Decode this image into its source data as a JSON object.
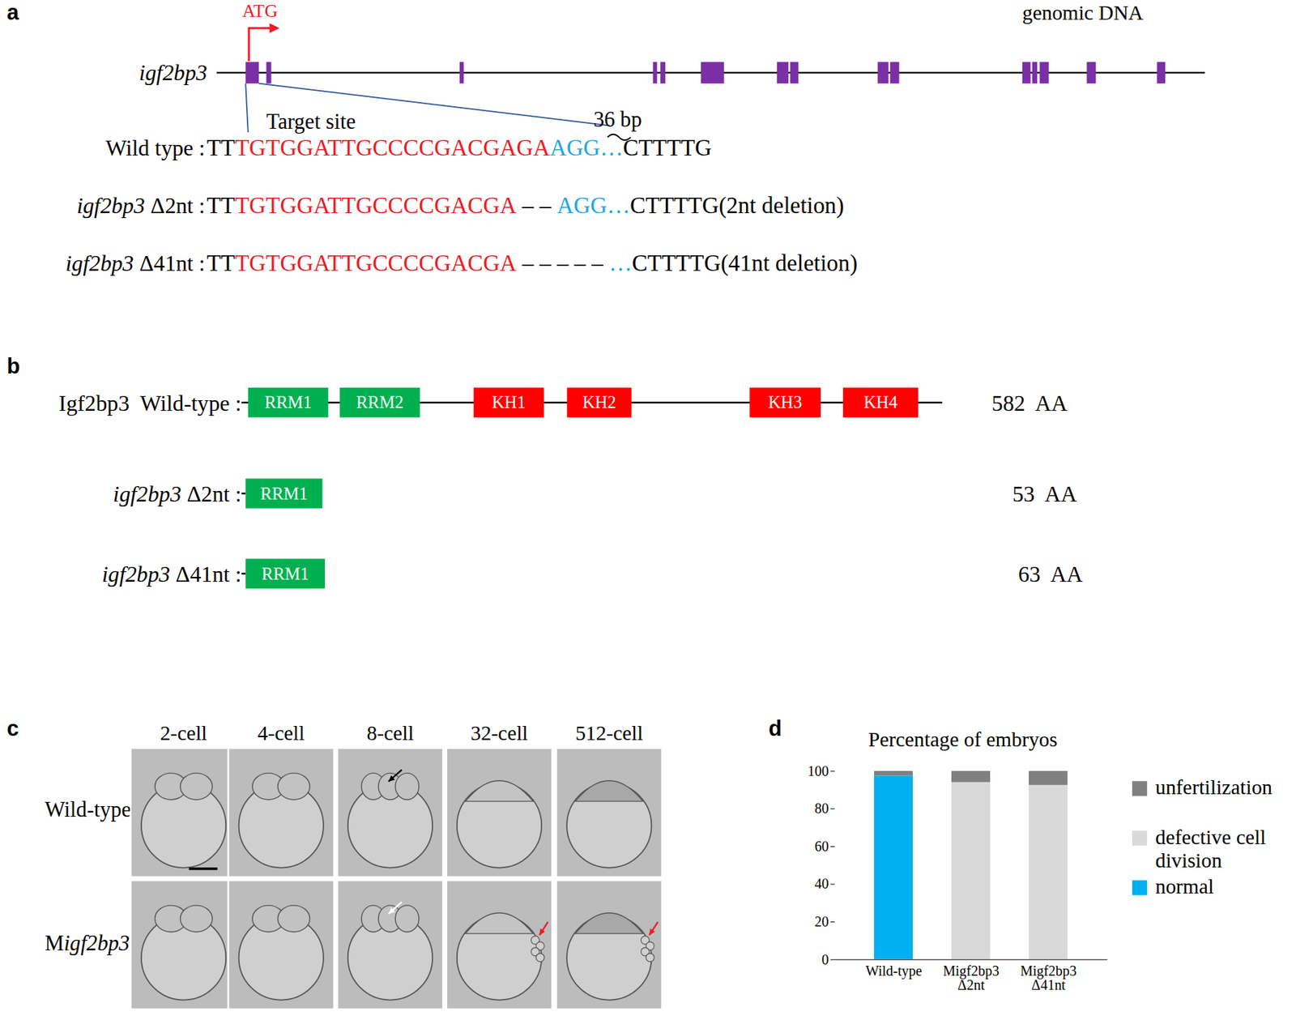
{
  "chart_data": {
    "type": "bar",
    "stacked": true,
    "title": "Percentage of embryos",
    "categories": [
      "Wild-type",
      "Migf2bp3 Δ2nt",
      "Migf2bp3 Δ41nt"
    ],
    "series": [
      {
        "name": "normal",
        "color": "#00b0f0",
        "values": [
          97.5,
          0,
          0
        ]
      },
      {
        "name": "defective cell division",
        "color": "#d9d9d9",
        "values": [
          0,
          94,
          92.5
        ]
      },
      {
        "name": "unfertilization",
        "color": "#808080",
        "values": [
          2.5,
          6,
          7.5
        ]
      }
    ],
    "ylim": [
      0,
      100
    ],
    "yticks": [
      0,
      20,
      40,
      60,
      80,
      100
    ],
    "grid": false,
    "legend": "right"
  },
  "figure": {
    "a": {
      "label": "a",
      "gene": [
        {
          "text": "igf2bp3",
          "italic": true
        }
      ],
      "track_label": "genomic DNA",
      "start_codon": "ATG",
      "target_label": "Target site",
      "gap_label": "36 bp",
      "sequences": [
        {
          "name": [
            "Wild type :"
          ],
          "segments": [
            "TT",
            {
              "text": "TGTGGATTGCCCCGACGAGA",
              "color": "#ee1c25"
            },
            {
              "text": "AGG…",
              "color": "#22a7e0"
            },
            "CTTTTG"
          ]
        },
        {
          "name": [
            {
              "text": "igf2bp3",
              "italic": true
            },
            " Δ2nt :"
          ],
          "segments": [
            "TT",
            {
              "text": "TGTGGATTGCCCCGACGA",
              "color": "#ee1c25"
            },
            " – – ",
            {
              "text": "AGG…",
              "color": "#22a7e0"
            },
            "CTTTTG(2nt deletion)"
          ]
        },
        {
          "name": [
            {
              "text": "igf2bp3",
              "italic": true
            },
            " Δ41nt :"
          ],
          "segments": [
            "TT",
            {
              "text": "TGTGGATTGCCCCGACGA",
              "color": "#ee1c25"
            },
            " – – – – – ",
            {
              "text": "…",
              "color": "#22a7e0"
            },
            "CTTTTG(41nt deletion)"
          ]
        }
      ]
    },
    "b": {
      "label": "b",
      "proteins": [
        {
          "name": [
            "Igf2bp3  Wild-type :"
          ],
          "length": 582,
          "unit": "AA",
          "domains": [
            {
              "name": "RRM1",
              "color": "#00b050"
            },
            {
              "name": "RRM2",
              "color": "#00b050"
            },
            {
              "name": "KH1",
              "color": "#ff0000"
            },
            {
              "name": "KH2",
              "color": "#ff0000"
            },
            {
              "name": "KH3",
              "color": "#ff0000"
            },
            {
              "name": "KH4",
              "color": "#ff0000"
            }
          ]
        },
        {
          "name": [
            {
              "text": "igf2bp3",
              "italic": true
            },
            " Δ2nt :"
          ],
          "length": 53,
          "unit": "AA",
          "domains": [
            {
              "name": "RRM1",
              "color": "#00b050"
            }
          ]
        },
        {
          "name": [
            {
              "text": "igf2bp3",
              "italic": true
            },
            " Δ41nt :"
          ],
          "length": 63,
          "unit": "AA",
          "domains": [
            {
              "name": "RRM1",
              "color": "#00b050"
            }
          ]
        }
      ]
    },
    "c": {
      "label": "c",
      "stages": [
        "2-cell",
        "4-cell",
        "8-cell",
        "32-cell",
        "512-cell"
      ],
      "rows": [
        [
          "Wild-type"
        ],
        [
          "M",
          {
            "text": "igf2bp3",
            "italic": true
          }
        ]
      ]
    },
    "d": {
      "label": "d"
    }
  }
}
